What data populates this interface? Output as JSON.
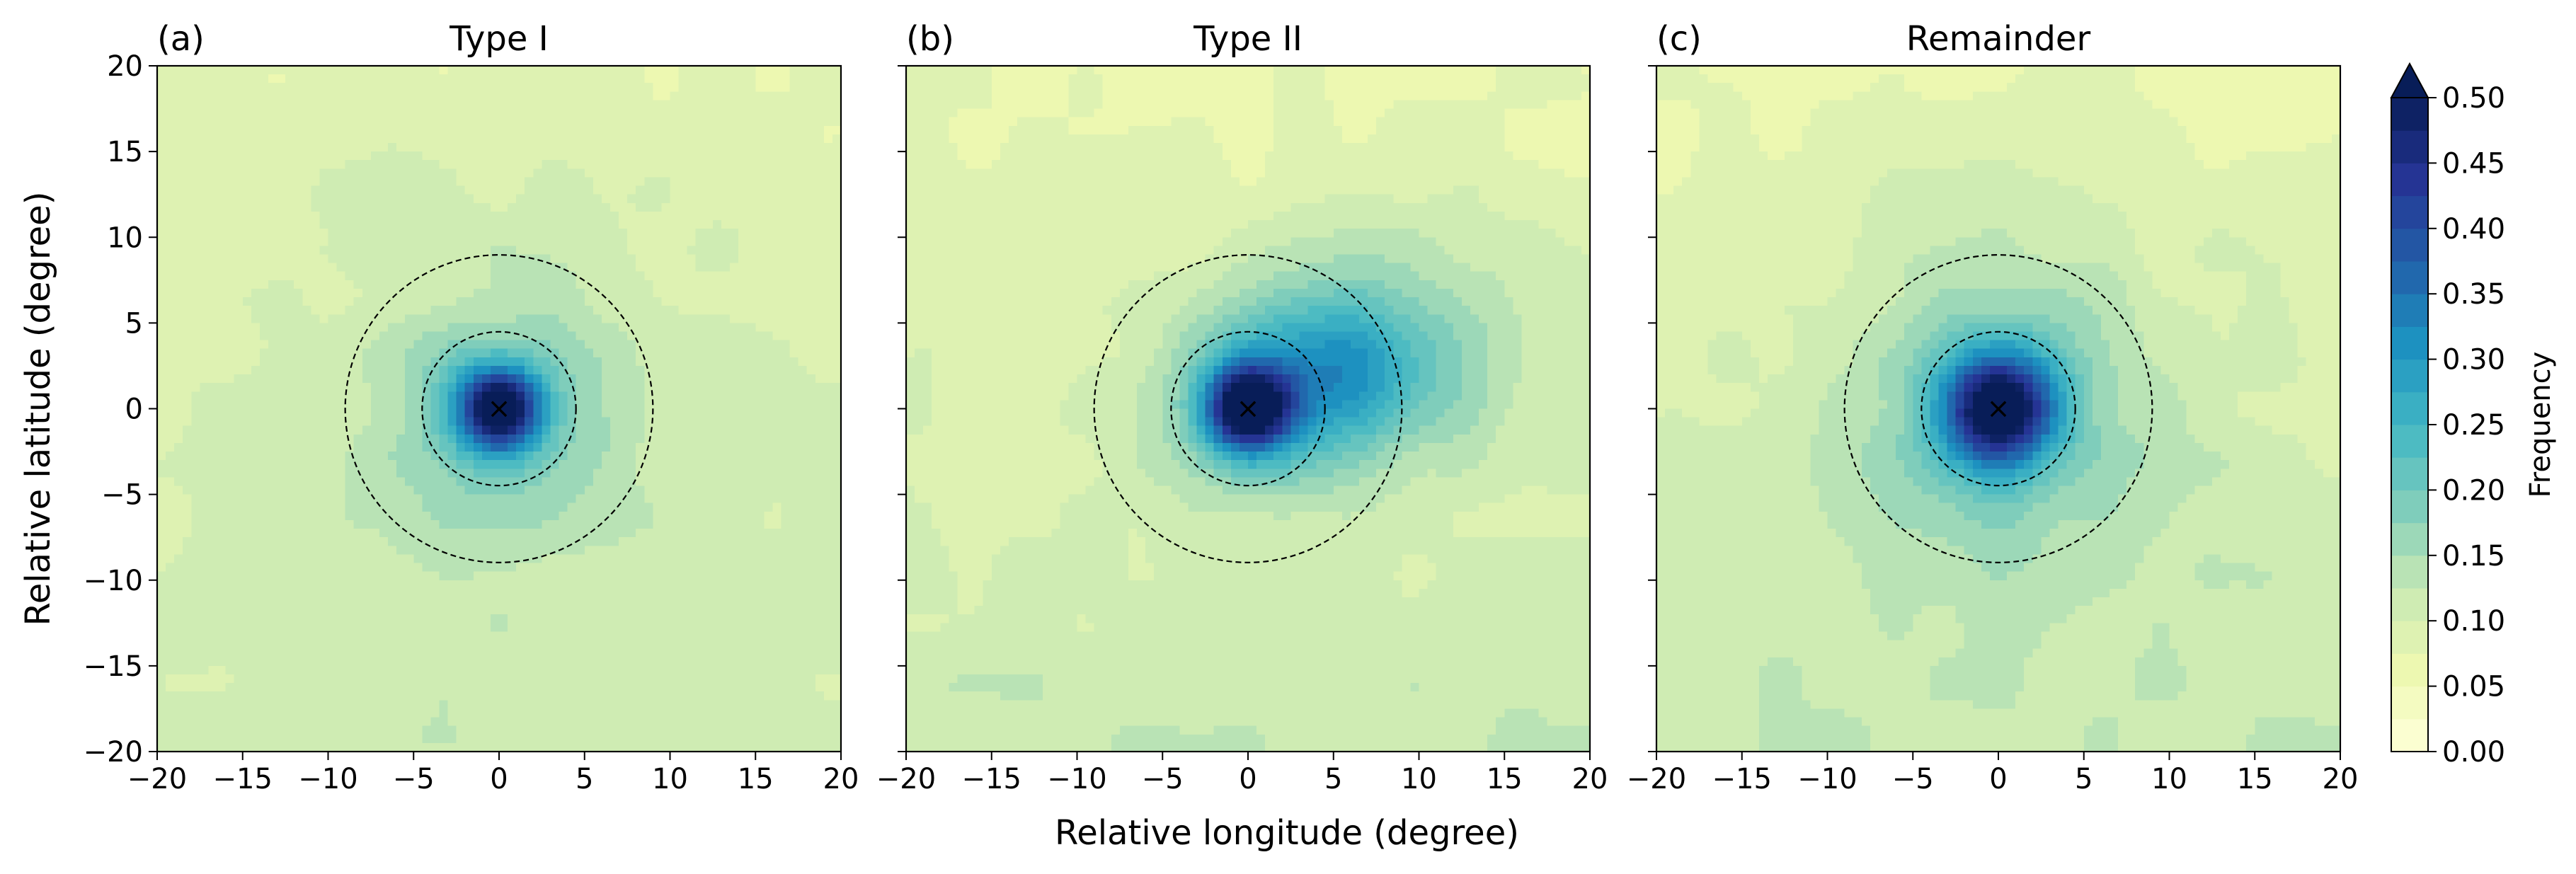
{
  "chart_data": {
    "type": "heatmap",
    "xlabel": "Relative longitude (degree)",
    "ylabel": "Relative latitude (degree)",
    "xlim": [
      -20,
      20
    ],
    "ylim": [
      -20,
      20
    ],
    "xticks": [
      -20,
      -15,
      -10,
      -5,
      0,
      5,
      10,
      15,
      20
    ],
    "yticks": [
      -20,
      -15,
      -10,
      -5,
      0,
      5,
      10,
      15,
      20
    ],
    "grid": false,
    "colormap": "YlGnBu",
    "colorbar": {
      "label": "Frequency",
      "range": [
        0.0,
        0.5
      ],
      "step": 0.025,
      "extend": "max",
      "tick_labels": [
        "0.00",
        "0.05",
        "0.10",
        "0.15",
        "0.20",
        "0.25",
        "0.30",
        "0.35",
        "0.40",
        "0.45",
        "0.50"
      ]
    },
    "circle_radii_deg": [
      4.5,
      9
    ],
    "center_marker": {
      "symbol": "×",
      "x": 0,
      "y": 0
    },
    "panels": [
      {
        "letter": "(a)",
        "title": "Type I",
        "peak": {
          "x": 0,
          "y": 0,
          "value": 0.5
        },
        "background": {
          "north": 0.08,
          "south": 0.11
        },
        "core_extent_deg": 6
      },
      {
        "letter": "(b)",
        "title": "Type II",
        "peak": {
          "x": 0,
          "y": 0,
          "value": 0.5
        },
        "secondary_max": {
          "x": 5,
          "y": 2,
          "value": 0.27
        },
        "background": {
          "north": 0.07,
          "south": 0.12
        },
        "core_extent_deg": 6
      },
      {
        "letter": "(c)",
        "title": "Remainder",
        "peak": {
          "x": 0,
          "y": 0,
          "value": 0.5
        },
        "background": {
          "north": 0.07,
          "south": 0.12
        },
        "core_extent_deg": 8
      }
    ]
  }
}
